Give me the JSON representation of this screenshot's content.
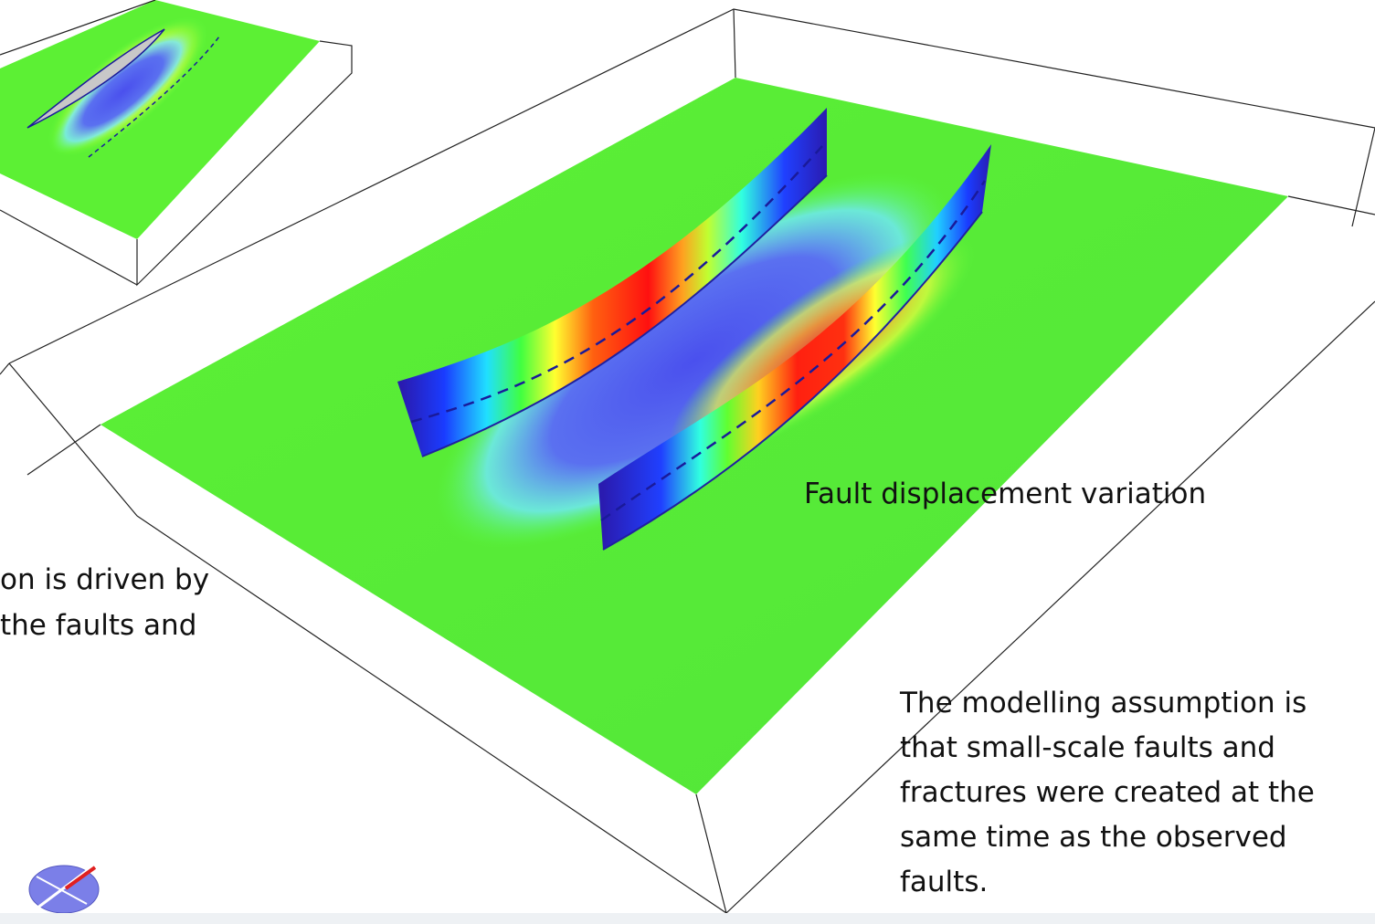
{
  "annotations": {
    "fault_label": "Fault displacement variation",
    "left_note": [
      "on is driven by",
      "the faults and"
    ],
    "assumption_note": [
      "The modelling assumption is",
      "that small-scale faults and",
      "fractures were created at the",
      "same time as the observed",
      "faults."
    ]
  }
}
